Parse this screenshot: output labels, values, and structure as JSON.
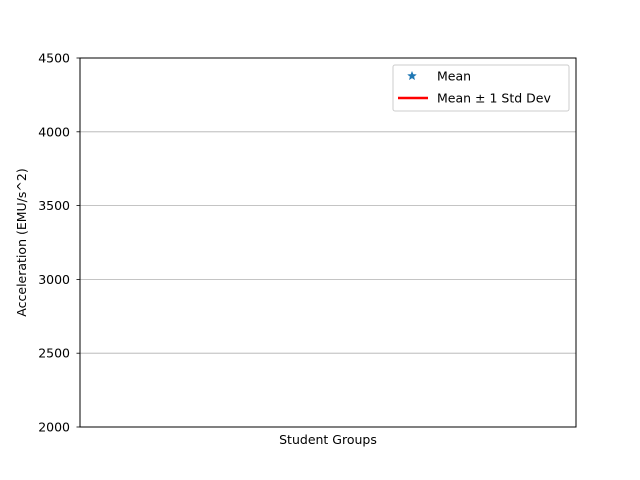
{
  "chart_data": {
    "type": "line",
    "title": "",
    "xlabel": "Student Groups",
    "ylabel": "Acceleration (EMU/s^2)",
    "ylim": [
      2000,
      4500
    ],
    "yticks": [
      2000,
      2500,
      3000,
      3500,
      4000,
      4500
    ],
    "grid": {
      "y": true,
      "x": false
    },
    "legend_placement": "top-right",
    "legend": [
      {
        "label": "Mean",
        "marker": "star",
        "color": "#1f77b4"
      },
      {
        "label": "Mean ± 1 Std Dev",
        "marker": "line",
        "color": "#ff0000"
      }
    ],
    "series": []
  }
}
